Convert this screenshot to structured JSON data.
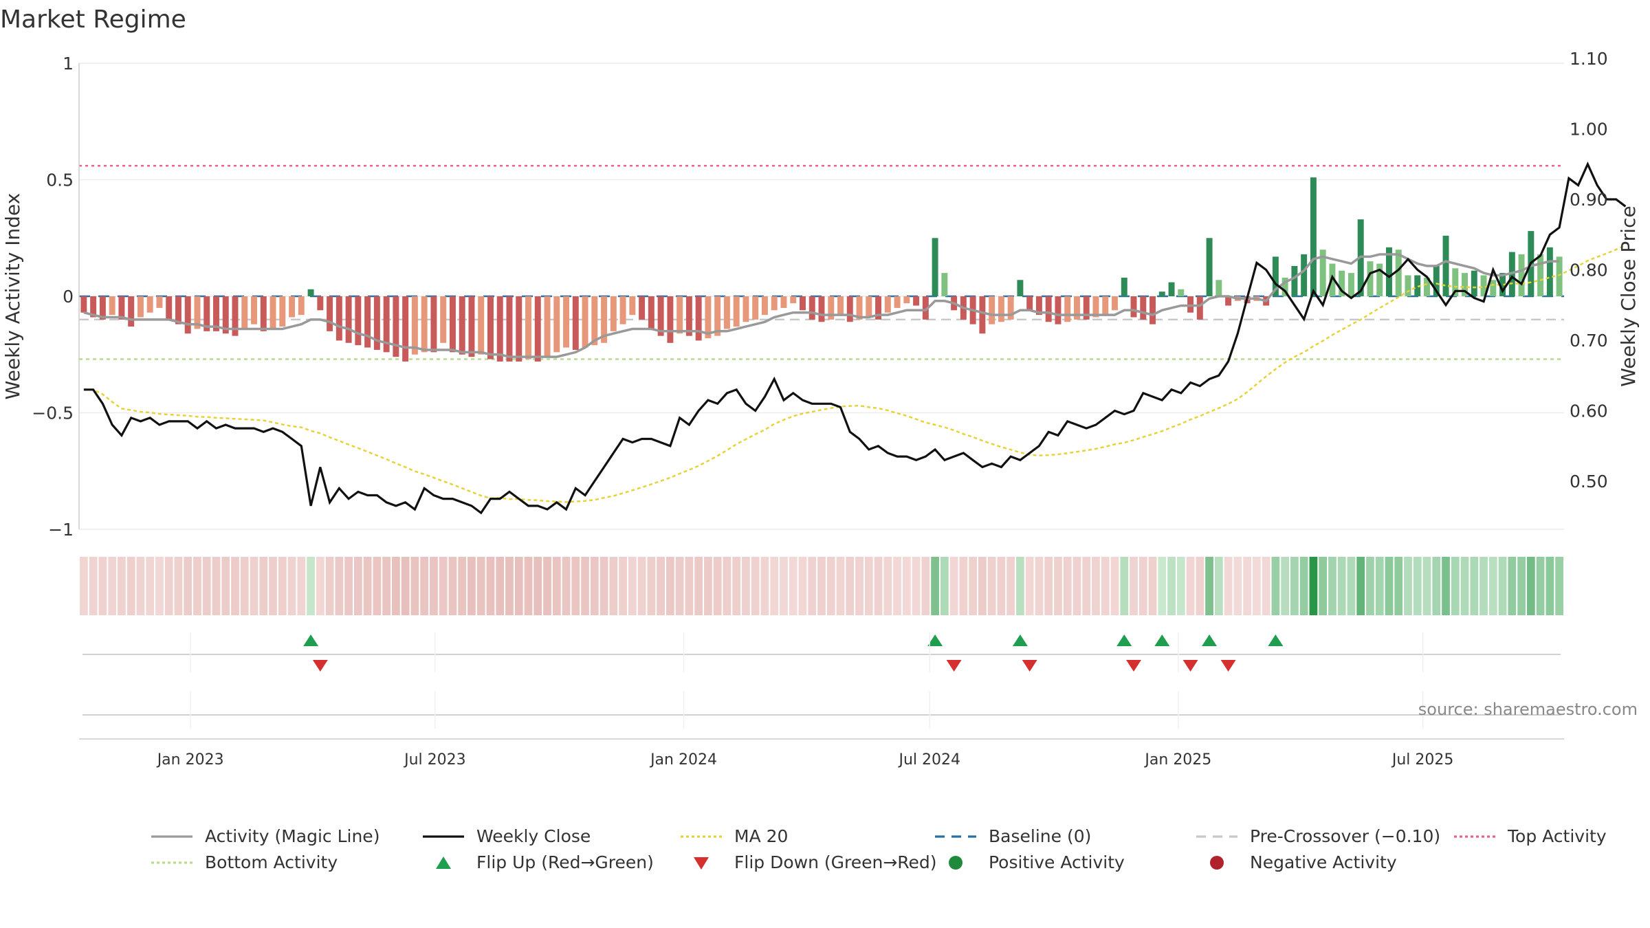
{
  "title": "Market Regime",
  "source": "source: sharemaestro.com",
  "colors": {
    "magic_line": "#999999",
    "weekly_close": "#111111",
    "ma20": "#e6d23a",
    "baseline": "#2b6ea3",
    "pre_crossover": "#c8c8c8",
    "top_activity": "#ee5f8a",
    "bottom_activity": "#b5dc8f",
    "flip_up": "#1e9e4e",
    "flip_down": "#d62f2f",
    "positive": "#1f8a3c",
    "negative": "#b0222c"
  },
  "chart_data": {
    "type": "bar",
    "ylabel_left": "Weekly Activity Index",
    "ylabel_right": "Weekly Close Price",
    "ylim_left": [
      -1,
      1
    ],
    "ylim_right": [
      0.43,
      1.1
    ],
    "yticks_left": [
      "1",
      "0.5",
      "0",
      "−0.5",
      "−1"
    ],
    "yticks_right": [
      "1.10",
      "1.00",
      "0.90",
      "0.80",
      "0.70",
      "0.60",
      "0.50"
    ],
    "xticks": [
      "Jan 2023",
      "Jul 2023",
      "Jan 2024",
      "Jul 2024",
      "Jan 2025",
      "Jul 2025"
    ],
    "x_start": "2022-10-14",
    "weeks": 157,
    "top_activity": 0.56,
    "bottom_activity": -0.27,
    "pre_crossover": -0.1,
    "baseline": 0,
    "activity": [
      -0.07,
      -0.09,
      -0.1,
      -0.08,
      -0.1,
      -0.13,
      -0.09,
      -0.07,
      -0.05,
      -0.1,
      -0.12,
      -0.16,
      -0.14,
      -0.15,
      -0.15,
      -0.16,
      -0.17,
      -0.14,
      -0.12,
      -0.15,
      -0.14,
      -0.13,
      -0.09,
      -0.08,
      0.03,
      -0.06,
      -0.15,
      -0.19,
      -0.2,
      -0.21,
      -0.22,
      -0.23,
      -0.24,
      -0.26,
      -0.28,
      -0.25,
      -0.24,
      -0.24,
      -0.2,
      -0.24,
      -0.25,
      -0.26,
      -0.25,
      -0.27,
      -0.28,
      -0.28,
      -0.28,
      -0.27,
      -0.28,
      -0.26,
      -0.24,
      -0.22,
      -0.23,
      -0.22,
      -0.21,
      -0.2,
      -0.15,
      -0.12,
      -0.08,
      -0.1,
      -0.14,
      -0.17,
      -0.2,
      -0.16,
      -0.17,
      -0.19,
      -0.18,
      -0.17,
      -0.14,
      -0.13,
      -0.11,
      -0.1,
      -0.08,
      -0.06,
      -0.05,
      -0.03,
      -0.06,
      -0.1,
      -0.11,
      -0.1,
      -0.08,
      -0.11,
      -0.1,
      -0.09,
      -0.1,
      -0.07,
      -0.05,
      -0.03,
      -0.04,
      -0.1,
      0.25,
      0.1,
      -0.06,
      -0.1,
      -0.12,
      -0.16,
      -0.12,
      -0.11,
      -0.1,
      0.07,
      -0.06,
      -0.08,
      -0.11,
      -0.12,
      -0.11,
      -0.1,
      -0.1,
      -0.09,
      -0.08,
      -0.06,
      0.08,
      -0.09,
      -0.1,
      -0.12,
      0.02,
      0.06,
      0.03,
      -0.07,
      -0.1,
      0.25,
      0.07,
      -0.04,
      -0.02,
      -0.03,
      -0.02,
      -0.04,
      0.17,
      0.08,
      0.13,
      0.18,
      0.51,
      0.2,
      0.14,
      0.11,
      0.1,
      0.33,
      0.15,
      0.14,
      0.21,
      0.2,
      0.09,
      0.09,
      0.08,
      0.13,
      0.26,
      0.12,
      0.1,
      0.11,
      0.09,
      0.07,
      0.1,
      0.19,
      0.18,
      0.28,
      0.18,
      0.21,
      0.17
    ],
    "magic_line": [
      -0.07,
      -0.08,
      -0.09,
      -0.09,
      -0.09,
      -0.1,
      -0.1,
      -0.1,
      -0.1,
      -0.1,
      -0.11,
      -0.12,
      -0.12,
      -0.13,
      -0.13,
      -0.14,
      -0.14,
      -0.14,
      -0.14,
      -0.14,
      -0.14,
      -0.14,
      -0.13,
      -0.12,
      -0.1,
      -0.1,
      -0.11,
      -0.13,
      -0.14,
      -0.16,
      -0.17,
      -0.19,
      -0.2,
      -0.21,
      -0.22,
      -0.22,
      -0.23,
      -0.23,
      -0.23,
      -0.23,
      -0.24,
      -0.24,
      -0.24,
      -0.25,
      -0.25,
      -0.26,
      -0.26,
      -0.26,
      -0.26,
      -0.26,
      -0.26,
      -0.25,
      -0.24,
      -0.22,
      -0.19,
      -0.17,
      -0.16,
      -0.15,
      -0.14,
      -0.14,
      -0.14,
      -0.15,
      -0.15,
      -0.15,
      -0.15,
      -0.15,
      -0.16,
      -0.15,
      -0.15,
      -0.14,
      -0.13,
      -0.12,
      -0.11,
      -0.09,
      -0.08,
      -0.07,
      -0.07,
      -0.07,
      -0.08,
      -0.08,
      -0.08,
      -0.08,
      -0.09,
      -0.09,
      -0.08,
      -0.08,
      -0.07,
      -0.06,
      -0.06,
      -0.06,
      -0.02,
      -0.02,
      -0.03,
      -0.05,
      -0.06,
      -0.07,
      -0.08,
      -0.08,
      -0.08,
      -0.06,
      -0.06,
      -0.07,
      -0.07,
      -0.08,
      -0.08,
      -0.08,
      -0.08,
      -0.08,
      -0.08,
      -0.08,
      -0.06,
      -0.06,
      -0.07,
      -0.08,
      -0.06,
      -0.05,
      -0.04,
      -0.04,
      -0.04,
      -0.01,
      0.0,
      0.0,
      -0.01,
      -0.01,
      -0.01,
      -0.02,
      0.03,
      0.06,
      0.08,
      0.11,
      0.16,
      0.17,
      0.16,
      0.15,
      0.14,
      0.17,
      0.17,
      0.18,
      0.18,
      0.18,
      0.16,
      0.14,
      0.13,
      0.13,
      0.15,
      0.14,
      0.13,
      0.12,
      0.1,
      0.09,
      0.09,
      0.1,
      0.11,
      0.13,
      0.14,
      0.15,
      0.15
    ],
    "weekly_close": [
      0.63,
      0.63,
      0.61,
      0.58,
      0.565,
      0.59,
      0.585,
      0.59,
      0.58,
      0.585,
      0.585,
      0.585,
      0.575,
      0.585,
      0.575,
      0.58,
      0.575,
      0.575,
      0.575,
      0.57,
      0.575,
      0.57,
      0.56,
      0.55,
      0.465,
      0.52,
      0.47,
      0.49,
      0.475,
      0.485,
      0.48,
      0.48,
      0.47,
      0.465,
      0.47,
      0.46,
      0.49,
      0.48,
      0.475,
      0.475,
      0.47,
      0.465,
      0.455,
      0.475,
      0.475,
      0.485,
      0.475,
      0.465,
      0.465,
      0.46,
      0.47,
      0.46,
      0.49,
      0.48,
      0.5,
      0.52,
      0.54,
      0.56,
      0.555,
      0.56,
      0.56,
      0.555,
      0.55,
      0.59,
      0.58,
      0.6,
      0.615,
      0.61,
      0.625,
      0.63,
      0.61,
      0.6,
      0.62,
      0.645,
      0.615,
      0.625,
      0.615,
      0.61,
      0.61,
      0.61,
      0.605,
      0.57,
      0.56,
      0.545,
      0.55,
      0.54,
      0.535,
      0.535,
      0.53,
      0.535,
      0.545,
      0.53,
      0.535,
      0.54,
      0.53,
      0.52,
      0.525,
      0.52,
      0.535,
      0.53,
      0.54,
      0.55,
      0.57,
      0.565,
      0.585,
      0.58,
      0.575,
      0.58,
      0.59,
      0.6,
      0.595,
      0.6,
      0.625,
      0.62,
      0.615,
      0.63,
      0.625,
      0.64,
      0.635,
      0.645,
      0.65,
      0.67,
      0.71,
      0.76,
      0.81,
      0.8,
      0.78,
      0.77,
      0.75,
      0.73,
      0.77,
      0.75,
      0.79,
      0.77,
      0.76,
      0.77,
      0.795,
      0.8,
      0.79,
      0.8,
      0.815,
      0.8,
      0.79,
      0.77,
      0.75,
      0.77,
      0.77,
      0.76,
      0.755,
      0.8,
      0.77,
      0.79,
      0.78,
      0.81,
      0.82,
      0.85,
      0.86,
      0.93,
      0.92,
      0.95,
      0.92,
      0.9,
      0.9,
      0.89
    ]
  },
  "legend": [
    {
      "key": "magic_line",
      "label": "Activity (Magic Line)"
    },
    {
      "key": "weekly_close",
      "label": "Weekly Close"
    },
    {
      "key": "ma20",
      "label": "MA 20"
    },
    {
      "key": "baseline",
      "label": "Baseline (0)"
    },
    {
      "key": "pre_crossover",
      "label": "Pre-Crossover (−0.10)"
    },
    {
      "key": "top_activity",
      "label": "Top Activity"
    },
    {
      "key": "bottom_activity",
      "label": "Bottom Activity"
    },
    {
      "key": "flip_up",
      "label": "Flip Up (Red→Green)"
    },
    {
      "key": "flip_down",
      "label": "Flip Down (Green→Red)"
    },
    {
      "key": "positive",
      "label": "Positive Activity"
    },
    {
      "key": "negative",
      "label": "Negative Activity"
    }
  ]
}
